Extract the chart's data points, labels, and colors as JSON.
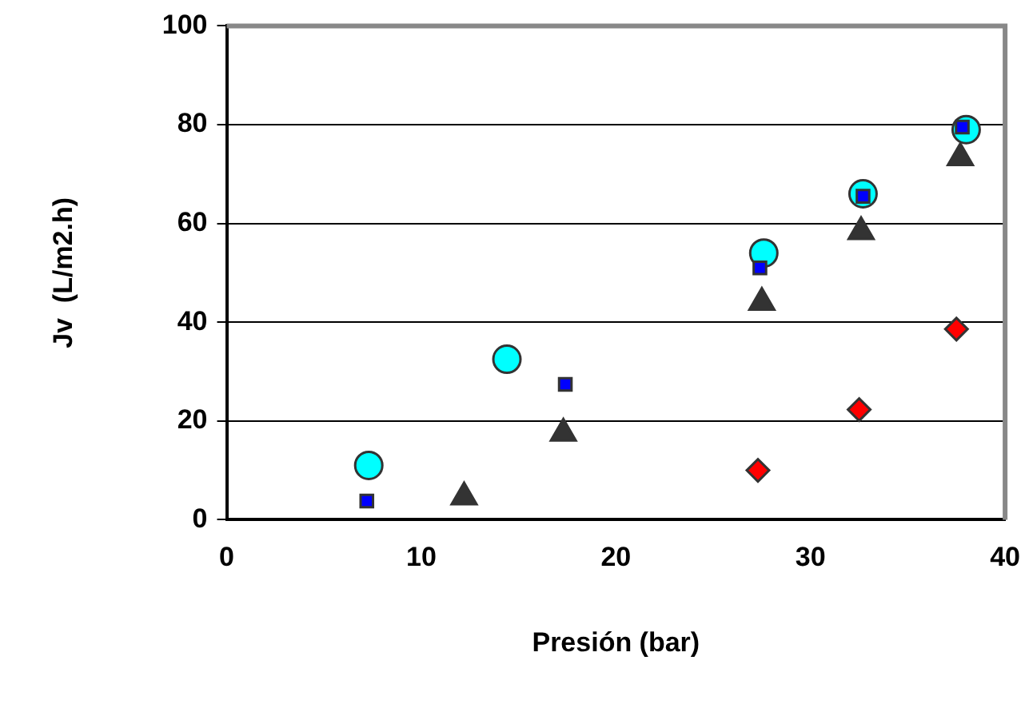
{
  "chart_data": {
    "type": "scatter",
    "xlabel": "Presión (bar)",
    "ylabel": "Jv  (L/m2.h)",
    "xlim": [
      0,
      40
    ],
    "xticks": [
      0,
      10,
      20,
      30,
      40
    ],
    "ylim": [
      0,
      100
    ],
    "yticks": [
      0,
      20,
      40,
      60,
      80,
      100
    ],
    "grid": "y",
    "legend": false,
    "series": [
      {
        "color": "#00ffff",
        "marker": "circle",
        "x": [
          7.3,
          14.4,
          27.6,
          32.7,
          38.0
        ],
        "values": [
          11,
          32.5,
          54,
          66,
          79
        ]
      },
      {
        "color": "#0000ff",
        "marker": "square",
        "x": [
          7.2,
          17.4,
          27.4,
          32.7,
          37.8
        ],
        "values": [
          3.8,
          27.4,
          51,
          65.5,
          79.5
        ]
      },
      {
        "color": "#333333",
        "marker": "triangle",
        "x": [
          12.2,
          17.3,
          27.5,
          32.6,
          37.7
        ],
        "values": [
          4.6,
          17.5,
          44,
          58.3,
          73.3
        ]
      },
      {
        "color": "#ff0000",
        "marker": "diamond",
        "x": [
          27.3,
          32.5,
          37.5
        ],
        "values": [
          10,
          22.3,
          38.6
        ]
      }
    ]
  }
}
